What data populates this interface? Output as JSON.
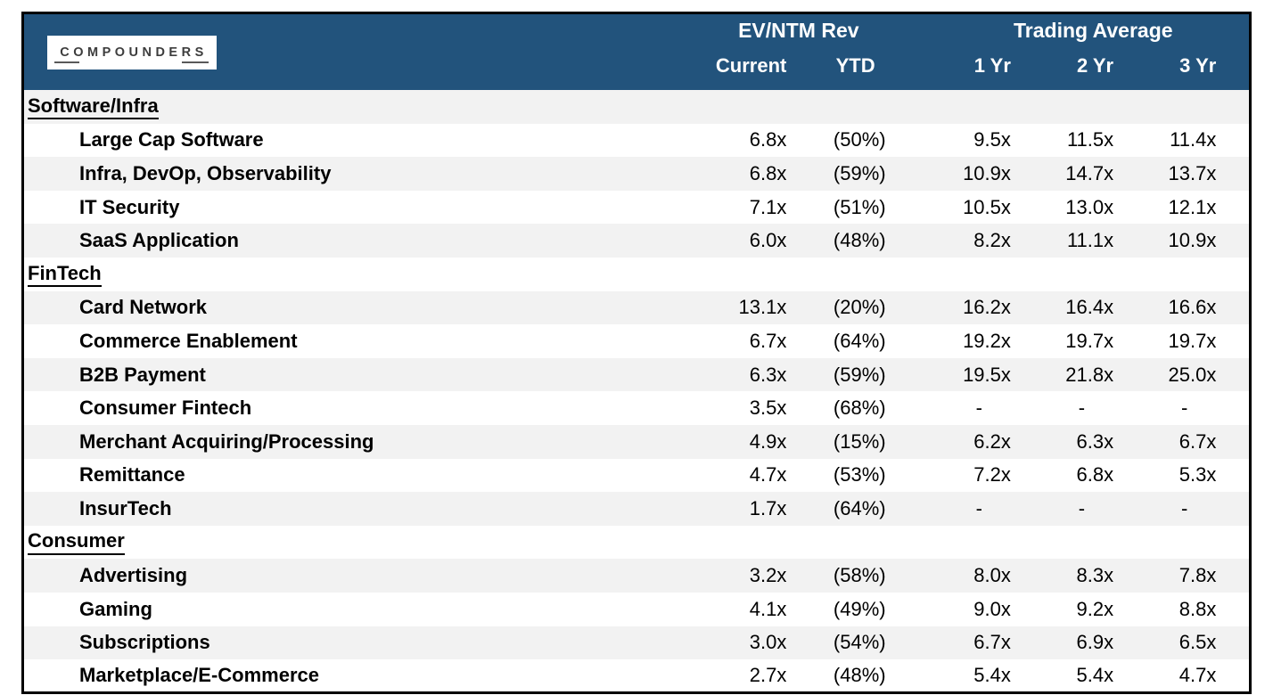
{
  "logo": {
    "text": "COMPOUNDERS"
  },
  "colors": {
    "header_bg": "#22537C",
    "band_row": "#F2F2F2",
    "white_row": "#FFFFFF",
    "border": "#000000",
    "header_text": "#FFFFFF",
    "body_text": "#000000"
  },
  "chart_data": {
    "type": "table",
    "group_headers": [
      "EV/NTM Rev",
      "Trading Average"
    ],
    "columns": [
      "Current",
      "YTD",
      "1 Yr",
      "2 Yr",
      "3 Yr"
    ],
    "sections": [
      {
        "name": "Software/Infra",
        "rows": [
          {
            "label": "Large Cap Software",
            "current": "6.8x",
            "ytd": "(50%)",
            "yr1": "9.5x",
            "yr2": "11.5x",
            "yr3": "11.4x"
          },
          {
            "label": "Infra, DevOp, Observability",
            "current": "6.8x",
            "ytd": "(59%)",
            "yr1": "10.9x",
            "yr2": "14.7x",
            "yr3": "13.7x"
          },
          {
            "label": "IT Security",
            "current": "7.1x",
            "ytd": "(51%)",
            "yr1": "10.5x",
            "yr2": "13.0x",
            "yr3": "12.1x"
          },
          {
            "label": "SaaS Application",
            "current": "6.0x",
            "ytd": "(48%)",
            "yr1": "8.2x",
            "yr2": "11.1x",
            "yr3": "10.9x"
          }
        ]
      },
      {
        "name": "FinTech",
        "rows": [
          {
            "label": "Card Network",
            "current": "13.1x",
            "ytd": "(20%)",
            "yr1": "16.2x",
            "yr2": "16.4x",
            "yr3": "16.6x"
          },
          {
            "label": "Commerce Enablement",
            "current": "6.7x",
            "ytd": "(64%)",
            "yr1": "19.2x",
            "yr2": "19.7x",
            "yr3": "19.7x"
          },
          {
            "label": "B2B Payment",
            "current": "6.3x",
            "ytd": "(59%)",
            "yr1": "19.5x",
            "yr2": "21.8x",
            "yr3": "25.0x"
          },
          {
            "label": "Consumer Fintech",
            "current": "3.5x",
            "ytd": "(68%)",
            "yr1": "-",
            "yr2": "-",
            "yr3": "-"
          },
          {
            "label": "Merchant Acquiring/Processing",
            "current": "4.9x",
            "ytd": "(15%)",
            "yr1": "6.2x",
            "yr2": "6.3x",
            "yr3": "6.7x"
          },
          {
            "label": "Remittance",
            "current": "4.7x",
            "ytd": "(53%)",
            "yr1": "7.2x",
            "yr2": "6.8x",
            "yr3": "5.3x"
          },
          {
            "label": "InsurTech",
            "current": "1.7x",
            "ytd": "(64%)",
            "yr1": "-",
            "yr2": "-",
            "yr3": "-"
          }
        ]
      },
      {
        "name": "Consumer",
        "rows": [
          {
            "label": "Advertising",
            "current": "3.2x",
            "ytd": "(58%)",
            "yr1": "8.0x",
            "yr2": "8.3x",
            "yr3": "7.8x"
          },
          {
            "label": "Gaming",
            "current": "4.1x",
            "ytd": "(49%)",
            "yr1": "9.0x",
            "yr2": "9.2x",
            "yr3": "8.8x"
          },
          {
            "label": "Subscriptions",
            "current": "3.0x",
            "ytd": "(54%)",
            "yr1": "6.7x",
            "yr2": "6.9x",
            "yr3": "6.5x"
          },
          {
            "label": "Marketplace/E-Commerce",
            "current": "2.7x",
            "ytd": "(48%)",
            "yr1": "5.4x",
            "yr2": "5.4x",
            "yr3": "4.7x"
          }
        ]
      }
    ]
  }
}
